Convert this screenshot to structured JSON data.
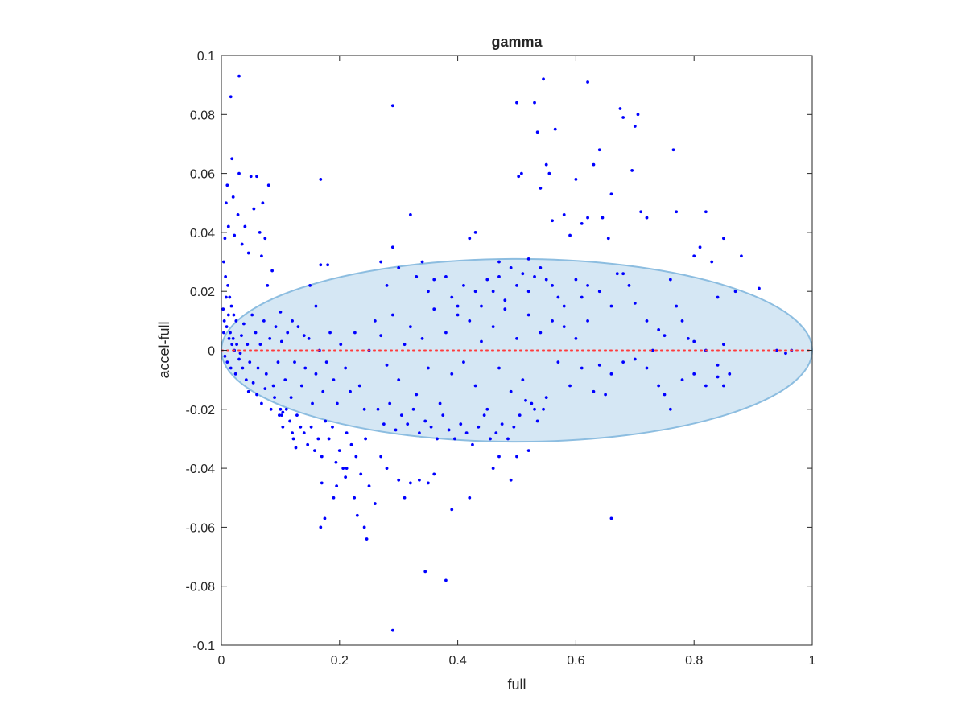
{
  "chart_data": {
    "type": "scatter",
    "title": "gamma",
    "xlabel": "full",
    "ylabel": "accel-full",
    "xlim": [
      0,
      1
    ],
    "ylim": [
      -0.1,
      0.1
    ],
    "xticks": [
      "0",
      "0.2",
      "0.4",
      "0.6",
      "0.8",
      "1"
    ],
    "yticks": [
      "-0.1",
      "-0.08",
      "-0.06",
      "-0.04",
      "-0.02",
      "0",
      "0.02",
      "0.04",
      "0.06",
      "0.08",
      "0.1"
    ],
    "grid": false,
    "reference_line": {
      "y": 0,
      "style": "dotted",
      "color": "#ff3b3b"
    },
    "ellipse": {
      "center_x": 0.5,
      "center_y": 0,
      "semi_axis_x": 0.5,
      "semi_axis_y": 0.031,
      "fill": "#d5e7f4",
      "stroke": "#8cbde0"
    },
    "series_color": "#0000ff",
    "points": [
      [
        0.016,
        0.086
      ],
      [
        0.03,
        0.093
      ],
      [
        0.018,
        0.065
      ],
      [
        0.01,
        0.056
      ],
      [
        0.02,
        0.052
      ],
      [
        0.008,
        0.05
      ],
      [
        0.03,
        0.06
      ],
      [
        0.028,
        0.046
      ],
      [
        0.012,
        0.042
      ],
      [
        0.022,
        0.039
      ],
      [
        0.006,
        0.038
      ],
      [
        0.035,
        0.036
      ],
      [
        0.04,
        0.042
      ],
      [
        0.046,
        0.033
      ],
      [
        0.05,
        0.059
      ],
      [
        0.06,
        0.059
      ],
      [
        0.055,
        0.048
      ],
      [
        0.065,
        0.04
      ],
      [
        0.068,
        0.032
      ],
      [
        0.07,
        0.05
      ],
      [
        0.08,
        0.056
      ],
      [
        0.074,
        0.038
      ],
      [
        0.086,
        0.027
      ],
      [
        0.078,
        0.022
      ],
      [
        0.1,
        0.013
      ],
      [
        0.12,
        0.01
      ],
      [
        0.15,
        0.022
      ],
      [
        0.168,
        0.029
      ],
      [
        0.18,
        0.029
      ],
      [
        0.168,
        0.058
      ],
      [
        0.16,
        0.015
      ],
      [
        0.14,
        0.005
      ],
      [
        0.004,
        0.03
      ],
      [
        0.007,
        0.025
      ],
      [
        0.011,
        0.022
      ],
      [
        0.014,
        0.018
      ],
      [
        0.017,
        0.015
      ],
      [
        0.021,
        0.012
      ],
      [
        0.025,
        0.01
      ],
      [
        0.009,
        0.008
      ],
      [
        0.004,
        0.006
      ],
      [
        0.013,
        0.004
      ],
      [
        0.018,
        0.002
      ],
      [
        0.022,
        0.0
      ],
      [
        0.006,
        -0.002
      ],
      [
        0.01,
        -0.004
      ],
      [
        0.016,
        -0.006
      ],
      [
        0.024,
        -0.008
      ],
      [
        0.03,
        -0.003
      ],
      [
        0.034,
        0.005
      ],
      [
        0.038,
        0.009
      ],
      [
        0.044,
        0.002
      ],
      [
        0.048,
        -0.004
      ],
      [
        0.052,
        0.012
      ],
      [
        0.058,
        0.006
      ],
      [
        0.062,
        -0.006
      ],
      [
        0.066,
        0.002
      ],
      [
        0.072,
        0.01
      ],
      [
        0.076,
        -0.008
      ],
      [
        0.082,
        0.004
      ],
      [
        0.088,
        -0.012
      ],
      [
        0.092,
        0.008
      ],
      [
        0.096,
        -0.004
      ],
      [
        0.102,
        0.003
      ],
      [
        0.108,
        -0.01
      ],
      [
        0.112,
        0.006
      ],
      [
        0.118,
        -0.016
      ],
      [
        0.124,
        -0.004
      ],
      [
        0.13,
        0.008
      ],
      [
        0.136,
        -0.012
      ],
      [
        0.142,
        -0.006
      ],
      [
        0.148,
        0.004
      ],
      [
        0.154,
        -0.018
      ],
      [
        0.16,
        -0.008
      ],
      [
        0.166,
        0.0
      ],
      [
        0.172,
        -0.014
      ],
      [
        0.178,
        -0.004
      ],
      [
        0.184,
        0.006
      ],
      [
        0.19,
        -0.01
      ],
      [
        0.196,
        -0.018
      ],
      [
        0.202,
        0.002
      ],
      [
        0.21,
        -0.006
      ],
      [
        0.218,
        -0.014
      ],
      [
        0.226,
        0.006
      ],
      [
        0.234,
        -0.012
      ],
      [
        0.242,
        -0.02
      ],
      [
        0.25,
        0.0
      ],
      [
        0.003,
        0.014
      ],
      [
        0.005,
        0.01
      ],
      [
        0.008,
        0.018
      ],
      [
        0.012,
        0.012
      ],
      [
        0.015,
        0.006
      ],
      [
        0.02,
        0.004
      ],
      [
        0.026,
        0.002
      ],
      [
        0.032,
        -0.001
      ],
      [
        0.036,
        -0.006
      ],
      [
        0.042,
        -0.01
      ],
      [
        0.046,
        -0.014
      ],
      [
        0.054,
        -0.011
      ],
      [
        0.06,
        -0.015
      ],
      [
        0.068,
        -0.018
      ],
      [
        0.074,
        -0.013
      ],
      [
        0.084,
        -0.02
      ],
      [
        0.09,
        -0.016
      ],
      [
        0.098,
        -0.022
      ],
      [
        0.104,
        -0.026
      ],
      [
        0.11,
        -0.02
      ],
      [
        0.116,
        -0.024
      ],
      [
        0.122,
        -0.03
      ],
      [
        0.128,
        -0.022
      ],
      [
        0.134,
        -0.026
      ],
      [
        0.14,
        -0.028
      ],
      [
        0.146,
        -0.032
      ],
      [
        0.152,
        -0.026
      ],
      [
        0.158,
        -0.034
      ],
      [
        0.164,
        -0.03
      ],
      [
        0.17,
        -0.036
      ],
      [
        0.176,
        -0.024
      ],
      [
        0.182,
        -0.03
      ],
      [
        0.188,
        -0.026
      ],
      [
        0.194,
        -0.038
      ],
      [
        0.2,
        -0.034
      ],
      [
        0.206,
        -0.04
      ],
      [
        0.212,
        -0.028
      ],
      [
        0.22,
        -0.032
      ],
      [
        0.228,
        -0.036
      ],
      [
        0.236,
        -0.042
      ],
      [
        0.244,
        -0.03
      ],
      [
        0.1,
        -0.02
      ],
      [
        0.102,
        -0.022
      ],
      [
        0.104,
        -0.021
      ],
      [
        0.12,
        -0.028
      ],
      [
        0.126,
        -0.033
      ],
      [
        0.17,
        -0.045
      ],
      [
        0.175,
        -0.057
      ],
      [
        0.168,
        -0.06
      ],
      [
        0.19,
        -0.05
      ],
      [
        0.195,
        -0.046
      ],
      [
        0.21,
        -0.043
      ],
      [
        0.212,
        -0.04
      ],
      [
        0.225,
        -0.05
      ],
      [
        0.23,
        -0.056
      ],
      [
        0.242,
        -0.06
      ],
      [
        0.246,
        -0.064
      ],
      [
        0.25,
        -0.046
      ],
      [
        0.26,
        -0.052
      ],
      [
        0.27,
        -0.036
      ],
      [
        0.28,
        -0.04
      ],
      [
        0.29,
        -0.095
      ],
      [
        0.3,
        -0.044
      ],
      [
        0.31,
        -0.05
      ],
      [
        0.32,
        -0.045
      ],
      [
        0.335,
        -0.044
      ],
      [
        0.345,
        -0.075
      ],
      [
        0.35,
        -0.045
      ],
      [
        0.36,
        -0.042
      ],
      [
        0.38,
        -0.078
      ],
      [
        0.39,
        -0.054
      ],
      [
        0.42,
        -0.05
      ],
      [
        0.46,
        -0.04
      ],
      [
        0.47,
        -0.036
      ],
      [
        0.49,
        -0.044
      ],
      [
        0.5,
        -0.036
      ],
      [
        0.52,
        -0.034
      ],
      [
        0.27,
        0.03
      ],
      [
        0.28,
        0.022
      ],
      [
        0.29,
        0.035
      ],
      [
        0.3,
        0.028
      ],
      [
        0.32,
        0.046
      ],
      [
        0.33,
        0.025
      ],
      [
        0.34,
        0.03
      ],
      [
        0.35,
        0.02
      ],
      [
        0.36,
        0.024
      ],
      [
        0.38,
        0.025
      ],
      [
        0.39,
        0.018
      ],
      [
        0.4,
        0.015
      ],
      [
        0.41,
        0.022
      ],
      [
        0.42,
        0.038
      ],
      [
        0.43,
        0.02
      ],
      [
        0.44,
        0.015
      ],
      [
        0.45,
        0.024
      ],
      [
        0.46,
        0.02
      ],
      [
        0.47,
        0.025
      ],
      [
        0.48,
        0.017
      ],
      [
        0.49,
        0.028
      ],
      [
        0.5,
        0.022
      ],
      [
        0.51,
        0.026
      ],
      [
        0.52,
        0.02
      ],
      [
        0.53,
        0.025
      ],
      [
        0.54,
        0.028
      ],
      [
        0.55,
        0.024
      ],
      [
        0.56,
        0.022
      ],
      [
        0.57,
        0.018
      ],
      [
        0.58,
        0.015
      ],
      [
        0.26,
        0.01
      ],
      [
        0.27,
        0.005
      ],
      [
        0.28,
        -0.005
      ],
      [
        0.29,
        0.012
      ],
      [
        0.3,
        -0.01
      ],
      [
        0.31,
        0.002
      ],
      [
        0.32,
        0.008
      ],
      [
        0.33,
        -0.015
      ],
      [
        0.34,
        0.004
      ],
      [
        0.35,
        -0.006
      ],
      [
        0.36,
        0.014
      ],
      [
        0.37,
        -0.018
      ],
      [
        0.38,
        0.006
      ],
      [
        0.39,
        -0.008
      ],
      [
        0.4,
        0.012
      ],
      [
        0.41,
        -0.004
      ],
      [
        0.42,
        0.01
      ],
      [
        0.43,
        -0.012
      ],
      [
        0.44,
        0.003
      ],
      [
        0.45,
        -0.02
      ],
      [
        0.46,
        0.008
      ],
      [
        0.47,
        -0.006
      ],
      [
        0.48,
        0.014
      ],
      [
        0.49,
        -0.014
      ],
      [
        0.5,
        0.004
      ],
      [
        0.51,
        -0.01
      ],
      [
        0.52,
        0.012
      ],
      [
        0.53,
        -0.02
      ],
      [
        0.54,
        0.006
      ],
      [
        0.55,
        -0.016
      ],
      [
        0.56,
        0.01
      ],
      [
        0.57,
        -0.004
      ],
      [
        0.58,
        0.008
      ],
      [
        0.59,
        -0.012
      ],
      [
        0.6,
        0.004
      ],
      [
        0.61,
        -0.006
      ],
      [
        0.62,
        0.01
      ],
      [
        0.63,
        -0.014
      ],
      [
        0.265,
        -0.02
      ],
      [
        0.275,
        -0.025
      ],
      [
        0.285,
        -0.018
      ],
      [
        0.295,
        -0.027
      ],
      [
        0.305,
        -0.022
      ],
      [
        0.315,
        -0.025
      ],
      [
        0.325,
        -0.02
      ],
      [
        0.335,
        -0.028
      ],
      [
        0.345,
        -0.024
      ],
      [
        0.355,
        -0.026
      ],
      [
        0.365,
        -0.03
      ],
      [
        0.375,
        -0.022
      ],
      [
        0.385,
        -0.027
      ],
      [
        0.395,
        -0.03
      ],
      [
        0.405,
        -0.025
      ],
      [
        0.415,
        -0.028
      ],
      [
        0.425,
        -0.032
      ],
      [
        0.435,
        -0.026
      ],
      [
        0.445,
        -0.022
      ],
      [
        0.455,
        -0.03
      ],
      [
        0.465,
        -0.028
      ],
      [
        0.475,
        -0.025
      ],
      [
        0.485,
        -0.03
      ],
      [
        0.495,
        -0.026
      ],
      [
        0.505,
        -0.022
      ],
      [
        0.515,
        -0.017
      ],
      [
        0.525,
        -0.018
      ],
      [
        0.535,
        -0.024
      ],
      [
        0.545,
        -0.02
      ],
      [
        0.29,
        0.083
      ],
      [
        0.43,
        0.04
      ],
      [
        0.47,
        0.03
      ],
      [
        0.5,
        0.084
      ],
      [
        0.503,
        0.059
      ],
      [
        0.508,
        0.06
      ],
      [
        0.52,
        0.031
      ],
      [
        0.53,
        0.084
      ],
      [
        0.535,
        0.074
      ],
      [
        0.54,
        0.055
      ],
      [
        0.545,
        0.092
      ],
      [
        0.55,
        0.063
      ],
      [
        0.555,
        0.06
      ],
      [
        0.56,
        0.044
      ],
      [
        0.565,
        0.075
      ],
      [
        0.58,
        0.046
      ],
      [
        0.59,
        0.039
      ],
      [
        0.6,
        0.058
      ],
      [
        0.61,
        0.043
      ],
      [
        0.62,
        0.045
      ],
      [
        0.62,
        0.091
      ],
      [
        0.63,
        0.063
      ],
      [
        0.64,
        0.068
      ],
      [
        0.645,
        0.045
      ],
      [
        0.655,
        0.038
      ],
      [
        0.66,
        0.053
      ],
      [
        0.67,
        0.026
      ],
      [
        0.675,
        0.082
      ],
      [
        0.68,
        0.079
      ],
      [
        0.695,
        0.061
      ],
      [
        0.7,
        0.076
      ],
      [
        0.705,
        0.08
      ],
      [
        0.71,
        0.047
      ],
      [
        0.72,
        0.045
      ],
      [
        0.765,
        0.068
      ],
      [
        0.77,
        0.047
      ],
      [
        0.8,
        0.032
      ],
      [
        0.81,
        0.035
      ],
      [
        0.82,
        0.047
      ],
      [
        0.83,
        0.03
      ],
      [
        0.85,
        0.038
      ],
      [
        0.88,
        0.032
      ],
      [
        0.91,
        0.021
      ],
      [
        0.6,
        0.024
      ],
      [
        0.61,
        0.018
      ],
      [
        0.62,
        0.022
      ],
      [
        0.64,
        0.02
      ],
      [
        0.66,
        0.015
      ],
      [
        0.68,
        0.026
      ],
      [
        0.69,
        0.022
      ],
      [
        0.7,
        0.016
      ],
      [
        0.72,
        0.01
      ],
      [
        0.74,
        0.007
      ],
      [
        0.75,
        0.005
      ],
      [
        0.76,
        0.024
      ],
      [
        0.77,
        0.015
      ],
      [
        0.78,
        0.01
      ],
      [
        0.8,
        0.003
      ],
      [
        0.82,
        0.0
      ],
      [
        0.84,
        0.018
      ],
      [
        0.85,
        0.002
      ],
      [
        0.86,
        -0.008
      ],
      [
        0.87,
        0.02
      ],
      [
        0.84,
        -0.005
      ],
      [
        0.73,
        0.0
      ],
      [
        0.79,
        0.004
      ],
      [
        0.64,
        -0.005
      ],
      [
        0.65,
        -0.015
      ],
      [
        0.66,
        -0.008
      ],
      [
        0.68,
        -0.004
      ],
      [
        0.7,
        -0.003
      ],
      [
        0.72,
        -0.006
      ],
      [
        0.74,
        -0.012
      ],
      [
        0.75,
        -0.015
      ],
      [
        0.76,
        -0.02
      ],
      [
        0.78,
        -0.01
      ],
      [
        0.8,
        -0.008
      ],
      [
        0.82,
        -0.012
      ],
      [
        0.84,
        -0.009
      ],
      [
        0.85,
        -0.012
      ],
      [
        0.66,
        -0.057
      ],
      [
        0.94,
        0.0
      ],
      [
        0.955,
        -0.001
      ],
      [
        0.965,
        0.0
      ]
    ]
  }
}
